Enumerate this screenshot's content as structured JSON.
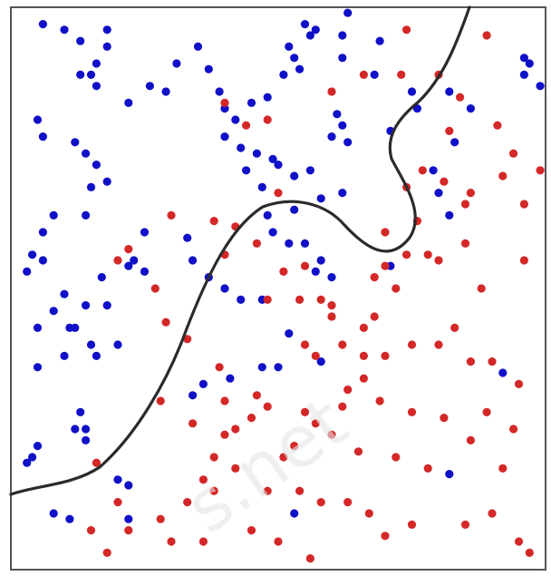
{
  "chart_data": {
    "type": "scatter",
    "title": "",
    "xlabel": "",
    "ylabel": "",
    "xlim": [
      0,
      100
    ],
    "ylim": [
      0,
      100
    ],
    "grid": false,
    "colors": {
      "class_a": "#1010c8",
      "class_b": "#d42828",
      "boundary": "#2b2b2b"
    },
    "series": [
      {
        "color": "#1010c8",
        "points": [
          [
            6,
            97
          ],
          [
            10,
            96
          ],
          [
            13,
            94
          ],
          [
            18,
            96
          ],
          [
            18,
            93
          ],
          [
            16,
            90
          ],
          [
            13,
            88
          ],
          [
            15,
            88
          ],
          [
            16,
            86
          ],
          [
            22,
            83
          ],
          [
            26,
            86
          ],
          [
            31,
            90
          ],
          [
            29,
            85
          ],
          [
            35,
            93
          ],
          [
            37,
            89
          ],
          [
            39,
            85
          ],
          [
            40,
            82
          ],
          [
            42,
            80
          ],
          [
            45,
            83
          ],
          [
            48,
            84
          ],
          [
            51,
            88
          ],
          [
            52,
            93
          ],
          [
            53,
            91
          ],
          [
            55,
            97
          ],
          [
            56,
            95
          ],
          [
            54,
            89
          ],
          [
            57,
            96
          ],
          [
            62,
            95
          ],
          [
            63,
            99
          ],
          [
            62,
            91
          ],
          [
            69,
            94
          ],
          [
            68,
            88
          ],
          [
            61,
            81
          ],
          [
            60,
            77
          ],
          [
            62,
            79
          ],
          [
            63,
            76
          ],
          [
            71,
            78
          ],
          [
            75,
            85
          ],
          [
            76,
            82
          ],
          [
            79,
            71
          ],
          [
            82,
            85
          ],
          [
            83,
            76
          ],
          [
            86,
            82
          ],
          [
            96,
            88
          ],
          [
            97,
            90
          ],
          [
            99,
            86
          ],
          [
            96,
            91
          ],
          [
            6,
            77
          ],
          [
            5,
            80
          ],
          [
            12,
            76
          ],
          [
            14,
            74
          ],
          [
            16,
            72
          ],
          [
            15,
            68
          ],
          [
            18,
            69
          ],
          [
            14,
            63
          ],
          [
            8,
            63
          ],
          [
            6,
            60
          ],
          [
            4,
            56
          ],
          [
            6,
            55
          ],
          [
            3,
            53
          ],
          [
            10,
            49
          ],
          [
            8,
            46
          ],
          [
            5,
            43
          ],
          [
            11,
            43
          ],
          [
            14,
            47
          ],
          [
            17,
            52
          ],
          [
            18,
            47
          ],
          [
            23,
            55
          ],
          [
            25,
            60
          ],
          [
            22,
            54
          ],
          [
            25,
            53
          ],
          [
            20,
            40
          ],
          [
            15,
            40
          ],
          [
            12,
            43
          ],
          [
            10,
            38
          ],
          [
            16,
            38
          ],
          [
            5,
            36
          ],
          [
            13,
            28
          ],
          [
            12,
            25
          ],
          [
            14,
            25
          ],
          [
            5,
            22
          ],
          [
            4,
            20
          ],
          [
            3,
            19
          ],
          [
            14,
            23
          ],
          [
            20,
            16
          ],
          [
            22,
            15
          ],
          [
            8,
            10
          ],
          [
            11,
            9
          ],
          [
            22,
            9
          ],
          [
            33,
            59
          ],
          [
            34,
            55
          ],
          [
            37,
            52
          ],
          [
            40,
            77
          ],
          [
            43,
            75
          ],
          [
            44,
            71
          ],
          [
            46,
            74
          ],
          [
            47,
            68
          ],
          [
            49,
            73
          ],
          [
            50,
            72
          ],
          [
            53,
            70
          ],
          [
            56,
            71
          ],
          [
            58,
            66
          ],
          [
            62,
            67
          ],
          [
            48,
            63
          ],
          [
            53,
            64
          ],
          [
            55,
            58
          ],
          [
            49,
            60
          ],
          [
            52,
            58
          ],
          [
            57,
            53
          ],
          [
            58,
            55
          ],
          [
            43,
            48
          ],
          [
            47,
            48
          ],
          [
            52,
            42
          ],
          [
            60,
            52
          ],
          [
            47,
            36
          ],
          [
            50,
            36
          ],
          [
            40,
            50
          ],
          [
            36,
            33
          ],
          [
            34,
            31
          ],
          [
            41,
            34
          ],
          [
            58,
            37
          ],
          [
            71,
            54
          ],
          [
            80,
            67
          ],
          [
            82,
            63
          ],
          [
            92,
            35
          ],
          [
            82,
            17
          ],
          [
            53,
            10
          ]
        ]
      },
      {
        "color": "#d42828",
        "points": [
          [
            74,
            96
          ],
          [
            89,
            95
          ],
          [
            73,
            88
          ],
          [
            80,
            88
          ],
          [
            84,
            84
          ],
          [
            82,
            78
          ],
          [
            91,
            79
          ],
          [
            94,
            74
          ],
          [
            99,
            71
          ],
          [
            86,
            67
          ],
          [
            92,
            70
          ],
          [
            77,
            71
          ],
          [
            74,
            68
          ],
          [
            81,
            69
          ],
          [
            85,
            65
          ],
          [
            96,
            65
          ],
          [
            76,
            62
          ],
          [
            70,
            60
          ],
          [
            74,
            56
          ],
          [
            78,
            56
          ],
          [
            68,
            52
          ],
          [
            70,
            54
          ],
          [
            72,
            50
          ],
          [
            80,
            55
          ],
          [
            85,
            58
          ],
          [
            88,
            50
          ],
          [
            96,
            55
          ],
          [
            68,
            45
          ],
          [
            66,
            43
          ],
          [
            60,
            47
          ],
          [
            62,
            40
          ],
          [
            57,
            38
          ],
          [
            55,
            40
          ],
          [
            63,
            32
          ],
          [
            66,
            38
          ],
          [
            70,
            38
          ],
          [
            75,
            40
          ],
          [
            80,
            40
          ],
          [
            86,
            37
          ],
          [
            90,
            37
          ],
          [
            83,
            43
          ],
          [
            95,
            33
          ],
          [
            69,
            30
          ],
          [
            75,
            28
          ],
          [
            81,
            27
          ],
          [
            86,
            23
          ],
          [
            92,
            18
          ],
          [
            94,
            25
          ],
          [
            89,
            28
          ],
          [
            78,
            18
          ],
          [
            72,
            20
          ],
          [
            65,
            21
          ],
          [
            60,
            24
          ],
          [
            57,
            26
          ],
          [
            55,
            28
          ],
          [
            53,
            22
          ],
          [
            51,
            20
          ],
          [
            48,
            14
          ],
          [
            54,
            14
          ],
          [
            58,
            12
          ],
          [
            63,
            12
          ],
          [
            67,
            10
          ],
          [
            70,
            6
          ],
          [
            75,
            8
          ],
          [
            85,
            8
          ],
          [
            90,
            10
          ],
          [
            95,
            5
          ],
          [
            97,
            3
          ],
          [
            50,
            5
          ],
          [
            56,
            2
          ],
          [
            48,
            29
          ],
          [
            46,
            31
          ],
          [
            45,
            27
          ],
          [
            42,
            25
          ],
          [
            40,
            24
          ],
          [
            38,
            20
          ],
          [
            42,
            18
          ],
          [
            38,
            14
          ],
          [
            33,
            12
          ],
          [
            28,
            9
          ],
          [
            22,
            7
          ],
          [
            36,
            5
          ],
          [
            30,
            5
          ],
          [
            18,
            3
          ],
          [
            15,
            7
          ],
          [
            20,
            12
          ],
          [
            16,
            19
          ],
          [
            40,
            30
          ],
          [
            39,
            36
          ],
          [
            33,
            41
          ],
          [
            29,
            44
          ],
          [
            27,
            50
          ],
          [
            22,
            57
          ],
          [
            20,
            55
          ],
          [
            38,
            62
          ],
          [
            42,
            61
          ],
          [
            46,
            58
          ],
          [
            40,
            56
          ],
          [
            30,
            63
          ],
          [
            28,
            30
          ],
          [
            34,
            26
          ],
          [
            36,
            16
          ],
          [
            45,
            7
          ],
          [
            48,
            48
          ],
          [
            54,
            48
          ],
          [
            60,
            45
          ],
          [
            62,
            29
          ],
          [
            66,
            34
          ],
          [
            44,
            79
          ],
          [
            48,
            80
          ],
          [
            50,
            67
          ],
          [
            51,
            53
          ],
          [
            40,
            83
          ],
          [
            60,
            85
          ],
          [
            66,
            88
          ],
          [
            55,
            54
          ],
          [
            58,
            48
          ]
        ]
      }
    ]
  }
}
